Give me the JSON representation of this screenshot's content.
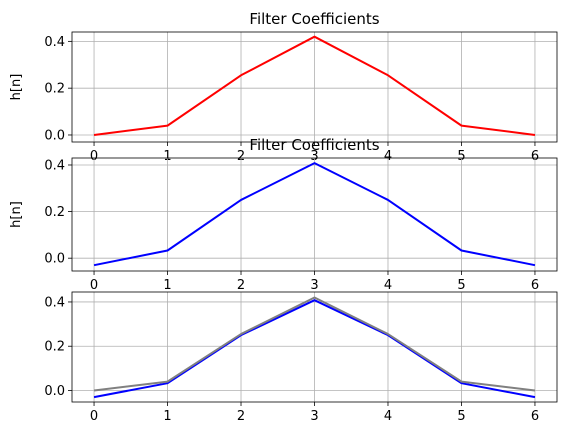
{
  "chart_data": [
    {
      "type": "line",
      "title": "Filter Coefficients",
      "xlabel": "",
      "ylabel": "h[n]",
      "x": [
        0,
        1,
        2,
        3,
        4,
        5,
        6
      ],
      "xlim": [
        -0.3,
        6.3
      ],
      "ylim": [
        -0.03,
        0.44
      ],
      "xticks": [
        "0",
        "1",
        "2",
        "3",
        "4",
        "5",
        "6"
      ],
      "yticks": [
        0.0,
        0.2,
        0.4
      ],
      "ytick_labels": [
        "0.0",
        "0.2",
        "0.4"
      ],
      "grid": true,
      "series": [
        {
          "color": "#ff0000",
          "values": [
            0.0,
            0.04,
            0.255,
            0.42,
            0.255,
            0.04,
            0.0
          ]
        }
      ]
    },
    {
      "type": "line",
      "title": "Filter Coefficients",
      "xlabel": "",
      "ylabel": "h[n]",
      "x": [
        0,
        1,
        2,
        3,
        4,
        5,
        6
      ],
      "xlim": [
        -0.3,
        6.3
      ],
      "ylim": [
        -0.055,
        0.43
      ],
      "xticks": [
        "0",
        "1",
        "2",
        "3",
        "4",
        "5",
        "6"
      ],
      "yticks": [
        0.0,
        0.2,
        0.4
      ],
      "ytick_labels": [
        "0.0",
        "0.2",
        "0.4"
      ],
      "grid": true,
      "series": [
        {
          "color": "#0000ff",
          "values": [
            -0.03,
            0.033,
            0.25,
            0.408,
            0.25,
            0.033,
            -0.03
          ]
        }
      ]
    },
    {
      "type": "line",
      "title": "",
      "xlabel": "",
      "ylabel": "",
      "x": [
        0,
        1,
        2,
        3,
        4,
        5,
        6
      ],
      "xlim": [
        -0.3,
        6.3
      ],
      "ylim": [
        -0.052,
        0.445
      ],
      "xticks": [
        "0",
        "1",
        "2",
        "3",
        "4",
        "5",
        "6"
      ],
      "yticks": [
        0.0,
        0.2,
        0.4
      ],
      "ytick_labels": [
        "0.0",
        "0.2",
        "0.4"
      ],
      "grid": true,
      "series": [
        {
          "color": "#0000ff",
          "values": [
            -0.03,
            0.033,
            0.25,
            0.408,
            0.25,
            0.033,
            -0.03
          ]
        },
        {
          "color": "#808080",
          "values": [
            0.0,
            0.04,
            0.255,
            0.42,
            0.255,
            0.04,
            0.0
          ]
        }
      ]
    }
  ]
}
